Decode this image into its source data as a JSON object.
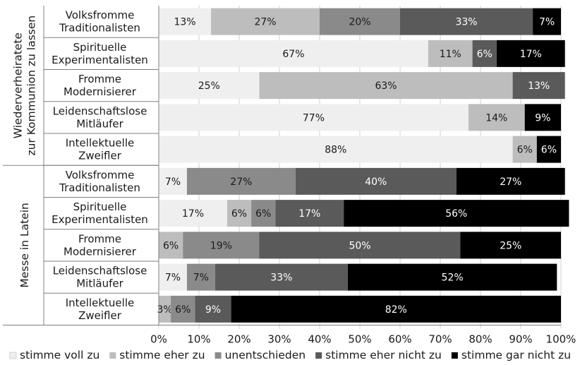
{
  "chart_data": {
    "type": "bar",
    "orientation": "horizontal",
    "stacked": true,
    "percent_axis": true,
    "xlim": [
      0,
      100
    ],
    "x_ticks": [
      "0%",
      "10%",
      "20%",
      "30%",
      "40%",
      "50%",
      "60%",
      "70%",
      "80%",
      "90%",
      "100%"
    ],
    "grid": true,
    "legend_position": "bottom",
    "groups": [
      {
        "label": "Wiederverheiratete zur Kommunion zu lassen",
        "label_lines": [
          "Wiederverheiratete",
          "zur Kommunion zu lassen"
        ],
        "rows": [
          {
            "label": "Volksfromme Traditionalisten",
            "lines": [
              "Volksfromme",
              "Traditionalisten"
            ],
            "values": [
              13,
              27,
              20,
              33,
              7
            ],
            "labels": [
              "13%",
              "27%",
              "20%",
              "33%",
              "7%"
            ]
          },
          {
            "label": "Spirituelle Experimentalisten",
            "lines": [
              "Spirituelle",
              "Experimentalisten"
            ],
            "values": [
              67,
              11,
              0,
              6,
              17
            ],
            "labels": [
              "67%",
              "11%",
              "",
              "6%",
              "17%"
            ]
          },
          {
            "label": "Fromme Modernisierer",
            "lines": [
              "Fromme",
              "Modernisierer"
            ],
            "values": [
              25,
              63,
              0,
              13,
              0
            ],
            "labels": [
              "25%",
              "63%",
              "",
              "13%",
              ""
            ]
          },
          {
            "label": "Leidenschaftslose Mitläufer",
            "lines": [
              "Leidenschaftslose",
              "Mitläufer"
            ],
            "values": [
              77,
              14,
              0,
              0,
              9
            ],
            "labels": [
              "77%",
              "14%",
              "",
              "",
              "9%"
            ]
          },
          {
            "label": "Intellektuelle Zweifler",
            "lines": [
              "Intellektuelle",
              "Zweifler"
            ],
            "values": [
              88,
              6,
              0,
              0,
              6
            ],
            "labels": [
              "88%",
              "6%",
              "",
              "",
              "6%"
            ]
          }
        ]
      },
      {
        "label": "Messe in Latein",
        "label_lines": [
          "Messe in Latein"
        ],
        "rows": [
          {
            "label": "Volksfromme Traditionalisten",
            "lines": [
              "Volksfromme",
              "Traditionalisten"
            ],
            "values": [
              7,
              0,
              27,
              40,
              27
            ],
            "labels": [
              "7%",
              "",
              "27%",
              "40%",
              "27%"
            ]
          },
          {
            "label": "Spirituelle Experimentalisten",
            "lines": [
              "Spirituelle",
              "Experimentalisten"
            ],
            "values": [
              17,
              6,
              6,
              17,
              56
            ],
            "labels": [
              "17%",
              "6%",
              "6%",
              "17%",
              "56%"
            ]
          },
          {
            "label": "Fromme Modernisierer",
            "lines": [
              "Fromme",
              "Modernisierer"
            ],
            "values": [
              0,
              6,
              19,
              50,
              25
            ],
            "labels": [
              "",
              "6%",
              "19%",
              "50%",
              "25%"
            ]
          },
          {
            "label": "Leidenschaftslose Mitläufer",
            "lines": [
              "Leidenschaftslose",
              "Mitläufer"
            ],
            "values": [
              7,
              0,
              7,
              33,
              52
            ],
            "labels": [
              "7%",
              "",
              "7%",
              "33%",
              "52%"
            ]
          },
          {
            "label": "Intellektuelle Zweifler",
            "lines": [
              "Intellektuelle",
              "Zweifler"
            ],
            "values": [
              0,
              3,
              6,
              9,
              82
            ],
            "labels": [
              "",
              "3%",
              "6%",
              "9%",
              "82%"
            ]
          }
        ]
      }
    ],
    "series": [
      {
        "name": "stimme voll zu",
        "color": "#efefef",
        "label_color": "#1a1a1a"
      },
      {
        "name": "stimme eher zu",
        "color": "#bdbdbd",
        "label_color": "#1a1a1a"
      },
      {
        "name": "unentschieden",
        "color": "#8a8a8a",
        "label_color": "#1a1a1a"
      },
      {
        "name": "stimme eher nicht zu",
        "color": "#5a5a5a",
        "label_color": "#ffffff"
      },
      {
        "name": "stimme gar nicht zu",
        "color": "#000000",
        "label_color": "#ffffff"
      }
    ]
  }
}
